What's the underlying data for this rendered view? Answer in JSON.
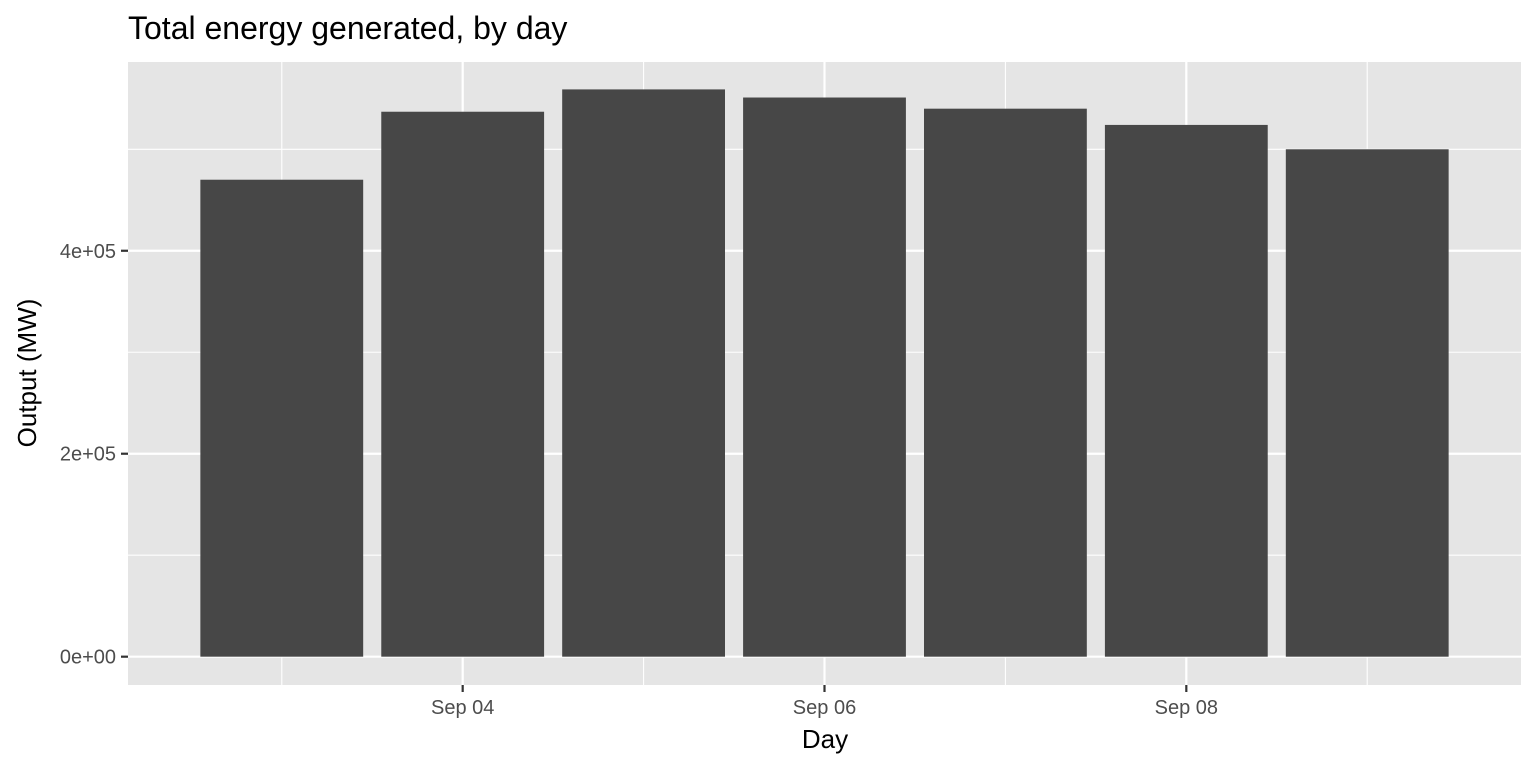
{
  "chart_data": {
    "type": "bar",
    "title": "Total energy generated, by day",
    "xlabel": "Day",
    "ylabel": "Output (MW)",
    "x_dates": [
      "2023-09-03",
      "2023-09-04",
      "2023-09-05",
      "2023-09-06",
      "2023-09-07",
      "2023-09-08",
      "2023-09-09"
    ],
    "values": [
      470000,
      537000,
      559000,
      551000,
      540000,
      524000,
      500000
    ],
    "x_ticks": [
      {
        "date": "2023-09-04",
        "label": "Sep 04"
      },
      {
        "date": "2023-09-06",
        "label": "Sep 06"
      },
      {
        "date": "2023-09-08",
        "label": "Sep 08"
      }
    ],
    "y_ticks": [
      {
        "value": 0,
        "label": "0e+00"
      },
      {
        "value": 200000,
        "label": "2e+05"
      },
      {
        "value": 400000,
        "label": "4e+05"
      }
    ],
    "ylim": [
      -27900,
      586000
    ],
    "grid": true,
    "colors": {
      "panel": "#e5e5e5",
      "bar": "#474747",
      "grid": "#ffffff"
    }
  }
}
